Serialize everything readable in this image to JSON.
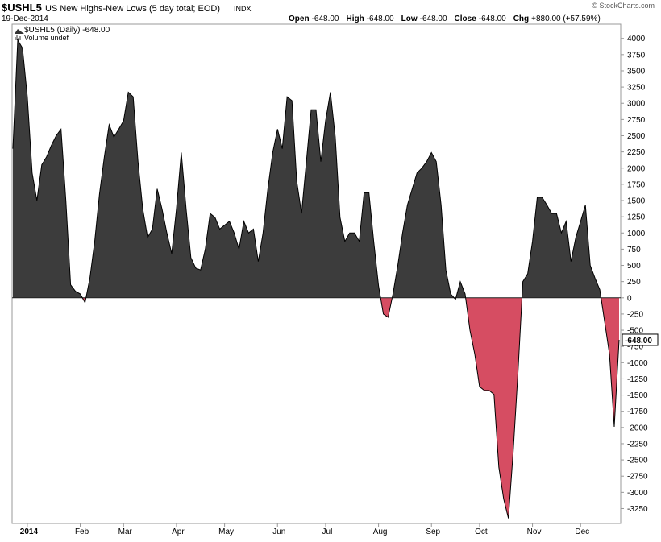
{
  "header": {
    "symbol": "$USHL5",
    "name": "US New Highs-New Lows (5 day total; EOD)",
    "exchange": "INDX",
    "date": "19-Dec-2014",
    "open": {
      "label": "Open",
      "value": "-648.00"
    },
    "high": {
      "label": "High",
      "value": "-648.00"
    },
    "low": {
      "label": "Low",
      "value": "-648.00"
    },
    "close": {
      "label": "Close",
      "value": "-648.00"
    },
    "chg": {
      "label": "Chg",
      "value": "+880.00 (+57.59%)"
    },
    "credit": "© StockCharts.com"
  },
  "chart_data": {
    "type": "area",
    "legend": [
      "$USHL5 (Daily) -648.00",
      "Volume undef"
    ],
    "annotation": "-648.00",
    "positive_color": "#3c3c3c",
    "negative_color": "#d64d62",
    "line_color": "#000000",
    "grid": false,
    "categories": [
      null,
      null,
      null,
      "2014",
      null,
      null,
      null,
      null,
      null,
      null,
      null,
      null,
      null,
      null,
      "Feb",
      null,
      null,
      null,
      null,
      null,
      null,
      null,
      null,
      "Mar",
      null,
      null,
      null,
      null,
      null,
      null,
      null,
      null,
      null,
      null,
      "Apr",
      null,
      null,
      null,
      null,
      null,
      null,
      null,
      null,
      null,
      "May",
      null,
      null,
      null,
      null,
      null,
      null,
      null,
      null,
      null,
      null,
      "Jun",
      null,
      null,
      null,
      null,
      null,
      null,
      null,
      null,
      null,
      "Jul",
      null,
      null,
      null,
      null,
      null,
      null,
      null,
      null,
      null,
      null,
      "Aug",
      null,
      null,
      null,
      null,
      null,
      null,
      null,
      null,
      null,
      null,
      "Sep",
      null,
      null,
      null,
      null,
      null,
      null,
      null,
      null,
      null,
      "Oct",
      null,
      null,
      null,
      null,
      null,
      null,
      null,
      null,
      null,
      null,
      "Nov",
      null,
      null,
      null,
      null,
      null,
      null,
      null,
      null,
      null,
      "Dec",
      null,
      null,
      null,
      null,
      null,
      null,
      null,
      null
    ],
    "values": [
      2300,
      3975,
      3850,
      3100,
      1925,
      1500,
      2050,
      2175,
      2350,
      2500,
      2600,
      1500,
      200,
      100,
      60,
      -75,
      300,
      870,
      1600,
      2170,
      2670,
      2480,
      2600,
      2730,
      3170,
      3100,
      2100,
      1370,
      930,
      1060,
      1680,
      1370,
      1000,
      680,
      1370,
      2240,
      1370,
      620,
      460,
      430,
      750,
      1300,
      1240,
      1060,
      1120,
      1180,
      1000,
      750,
      1180,
      1000,
      1060,
      560,
      1000,
      1680,
      2240,
      2600,
      2300,
      3100,
      3040,
      1800,
      1300,
      2100,
      2900,
      2900,
      2100,
      2730,
      3170,
      2480,
      1240,
      870,
      1000,
      1000,
      870,
      1620,
      1620,
      870,
      185,
      -250,
      -300,
      60,
      500,
      1000,
      1430,
      1680,
      1925,
      2000,
      2100,
      2240,
      2100,
      1430,
      430,
      60,
      -25,
      250,
      60,
      -500,
      -870,
      -1370,
      -1430,
      -1430,
      -1490,
      -2610,
      -3100,
      -3400,
      -2360,
      -1120,
      250,
      370,
      870,
      1550,
      1550,
      1430,
      1300,
      1300,
      1000,
      1180,
      560,
      930,
      1180,
      1430,
      500,
      300,
      125,
      -370,
      -870,
      -1990,
      -648
    ],
    "ylim": [
      -3480,
      4220
    ],
    "yticks": [
      -3250,
      -3000,
      -2750,
      -2500,
      -2250,
      -2000,
      -1750,
      -1500,
      -1250,
      -1000,
      -750,
      -500,
      -250,
      0,
      250,
      500,
      750,
      1000,
      1250,
      1500,
      1750,
      2000,
      2250,
      2500,
      2750,
      3000,
      3250,
      3500,
      3750,
      4000
    ]
  }
}
